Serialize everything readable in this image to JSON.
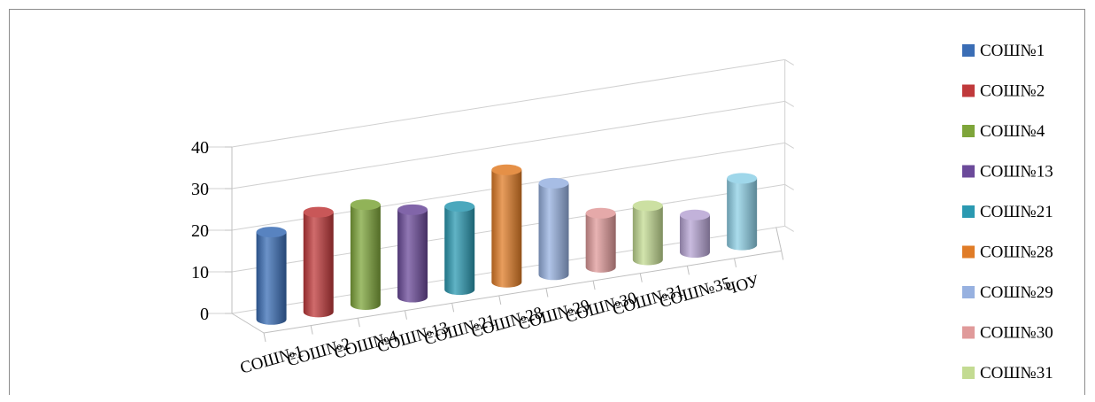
{
  "chart_data": {
    "type": "bar",
    "style": "3d-cylinder",
    "categories": [
      "СОШ№1",
      "СОШ№2",
      "СОШ№4",
      "СОШ№13",
      "СОШ№21",
      "СОШ№28",
      "СОШ№29",
      "СОШ№30",
      "СОШ№31",
      "СОШ№35",
      "ЧОУ"
    ],
    "x_tick_labels": [
      "СОШ№1",
      "СОШ№2",
      "СОШ№4",
      "СОШ№13",
      "СОШ№21",
      "СОШ№28",
      "СОШ№29",
      "СОШ№30",
      "СОШ№31",
      "СОШ№35",
      "ЧОУ"
    ],
    "values": [
      21,
      24,
      24,
      21,
      20,
      27,
      22,
      13,
      13,
      9,
      16
    ],
    "y_ticks": [
      "0",
      "10",
      "20",
      "30",
      "40"
    ],
    "ylim": [
      0,
      40
    ],
    "grid": true,
    "legend_position": "right",
    "legend": [
      "СОШ№1",
      "СОШ№2",
      "СОШ№4",
      "СОШ№13",
      "СОШ№21",
      "СОШ№28",
      "СОШ№29",
      "СОШ№30",
      "СОШ№31"
    ],
    "colors": [
      "#3a6db5",
      "#c0393b",
      "#7ea53a",
      "#6b4a9a",
      "#2b99b1",
      "#e07c27",
      "#97b1e0",
      "#e09a9a",
      "#c3db92",
      "#b7a4d4",
      "#8ed0e6"
    ],
    "title": "",
    "xlabel": "",
    "ylabel": ""
  }
}
